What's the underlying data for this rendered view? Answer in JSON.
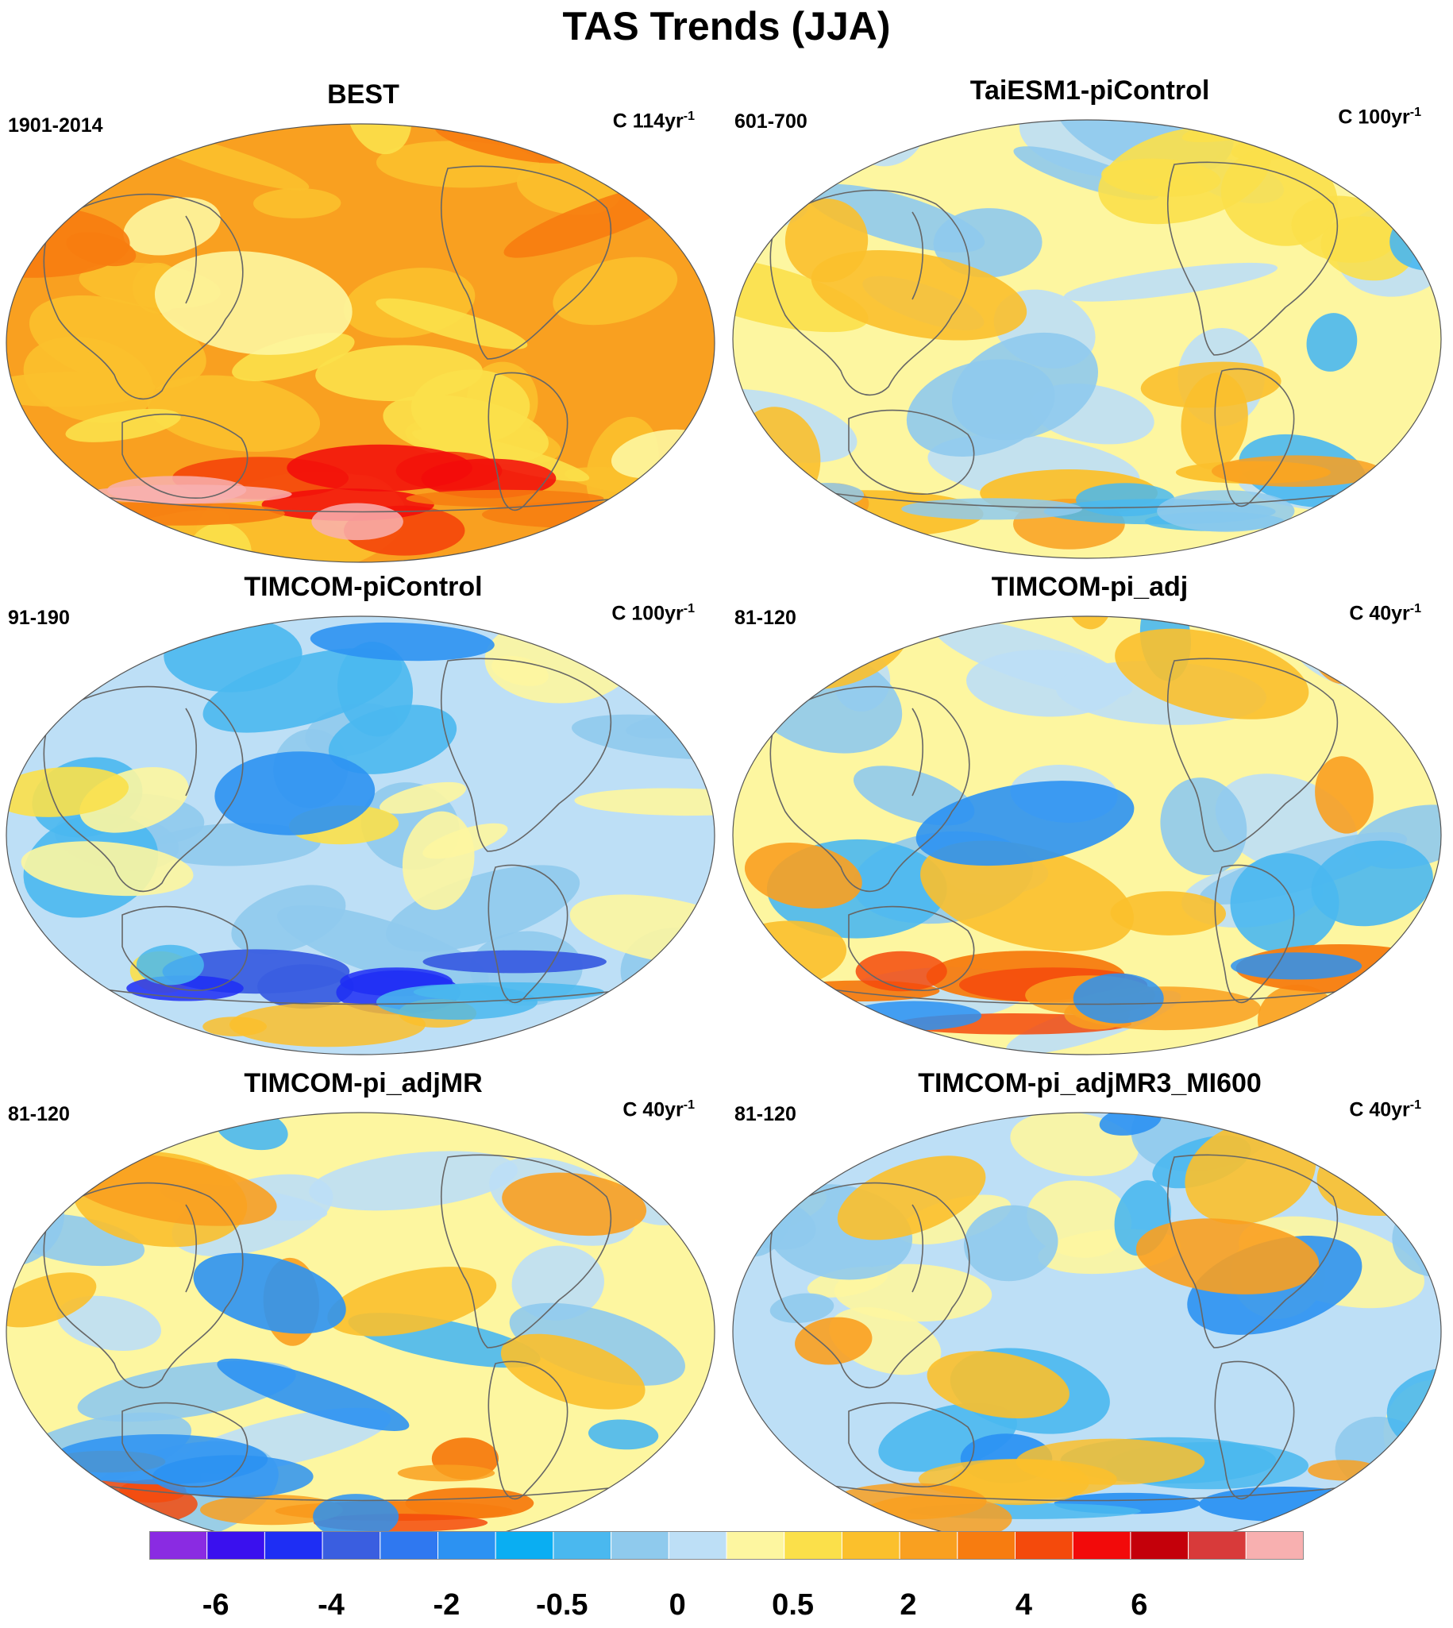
{
  "figure": {
    "title": "TAS Trends (JJA)"
  },
  "panels": [
    {
      "title": "BEST",
      "period": "1901-2014",
      "units_prefix": "C 114yr",
      "units_exp": "-1",
      "scheme": "warm"
    },
    {
      "title": "TaiESM1-piControl",
      "period": "601-700",
      "units_prefix": "C 100yr",
      "units_exp": "-1",
      "scheme": "mixed_pale"
    },
    {
      "title": "TIMCOM-piControl",
      "period": "91-190",
      "units_prefix": "C 100yr",
      "units_exp": "-1",
      "scheme": "cool"
    },
    {
      "title": "TIMCOM-pi_adj",
      "period": "81-120",
      "units_prefix": "C 40yr",
      "units_exp": "-1",
      "scheme": "mixed_strong"
    },
    {
      "title": "TIMCOM-pi_adjMR",
      "period": "81-120",
      "units_prefix": "C 40yr",
      "units_exp": "-1",
      "scheme": "mixed_strong"
    },
    {
      "title": "TIMCOM-pi_adjMR3_MI600",
      "period": "81-120",
      "units_prefix": "C 40yr",
      "units_exp": "-1",
      "scheme": "mixed_cool"
    }
  ],
  "colorbar": {
    "colors": [
      "#8a2be2",
      "#3a10ee",
      "#1e2ef4",
      "#3a5ee0",
      "#2f78f0",
      "#2c92f2",
      "#0aaef2",
      "#4ab8ef",
      "#8fcaed",
      "#bddff6",
      "#fdf6a0",
      "#fbe04a",
      "#fbc02c",
      "#f9a020",
      "#f77c10",
      "#f44a0c",
      "#f20a0a",
      "#c4000a",
      "#d83a3a",
      "#f8b0b0"
    ],
    "labels": [
      "-6",
      "-4",
      "-2",
      "-0.5",
      "0",
      "0.5",
      "2",
      "4",
      "6"
    ]
  }
}
